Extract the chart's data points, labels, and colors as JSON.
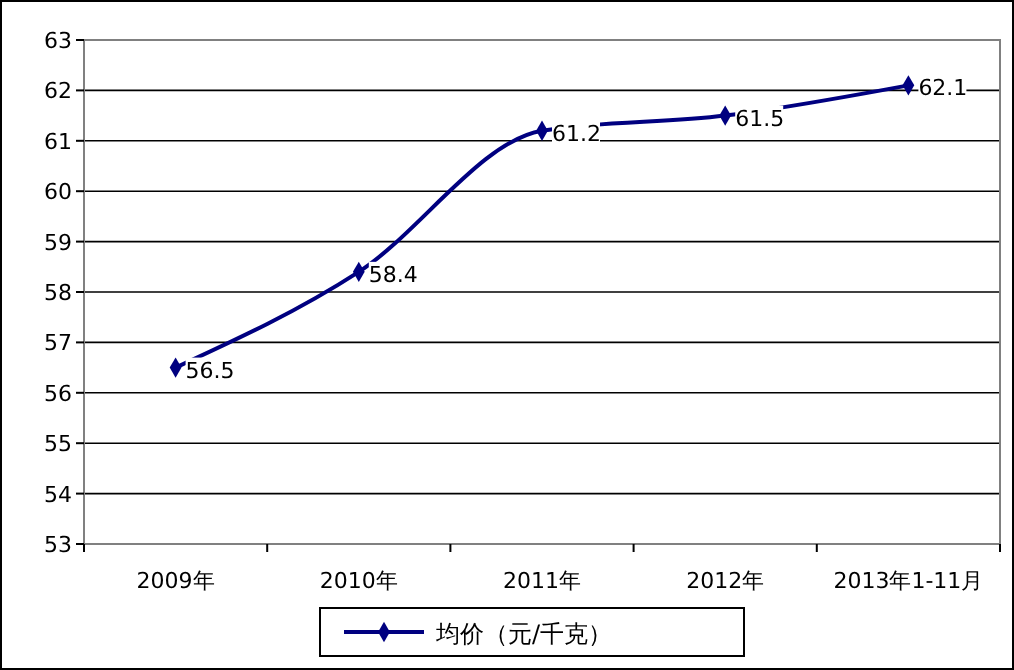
{
  "chart_data": {
    "type": "line",
    "categories": [
      "2009年",
      "2010年",
      "2011年",
      "2012年",
      "2013年1-11月"
    ],
    "series": [
      {
        "name": "均价（元/千克）",
        "color": "#000080",
        "values": [
          56.5,
          58.4,
          61.2,
          61.5,
          62.1
        ]
      }
    ],
    "ylim": [
      53,
      63
    ],
    "yticks": [
      53,
      54,
      55,
      56,
      57,
      58,
      59,
      60,
      61,
      62,
      63
    ],
    "grid": "y",
    "legend": "bottom",
    "marker": "diamond",
    "line_style": "solid",
    "data_labels": true
  }
}
